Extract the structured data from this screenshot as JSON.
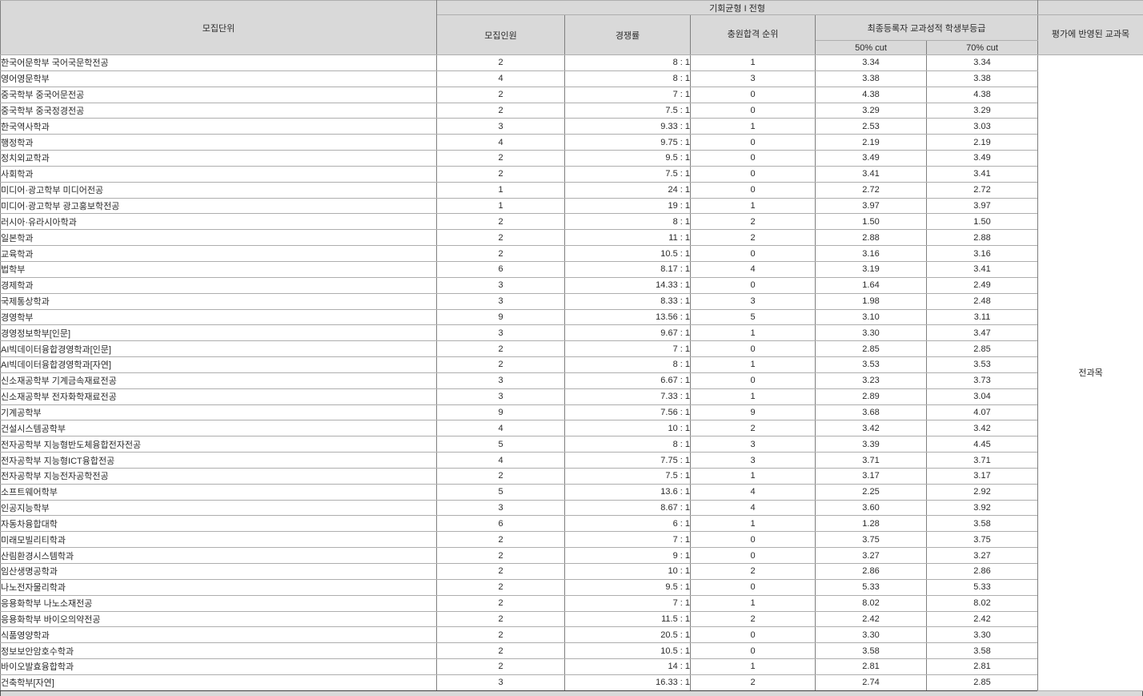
{
  "header": {
    "unit": "모집단위",
    "group_title": "기회균형 I 전형",
    "quota": "모집인원",
    "ratio": "경쟁률",
    "waitlist": "충원합격\n순위",
    "grade_group": "최종등록자 교과성적 학생부등급",
    "cut50": "50% cut",
    "cut70": "70% cut",
    "subjects": "평가에 반영된\n교과목"
  },
  "subjects_value": "전과목",
  "rows": [
    {
      "unit": "한국어문학부 국어국문학전공",
      "quota": "2",
      "ratio": "8 : 1",
      "waitlist": "1",
      "cut50": "3.34",
      "cut70": "3.34"
    },
    {
      "unit": "영어영문학부",
      "quota": "4",
      "ratio": "8 : 1",
      "waitlist": "3",
      "cut50": "3.38",
      "cut70": "3.38"
    },
    {
      "unit": "중국학부 중국어문전공",
      "quota": "2",
      "ratio": "7 : 1",
      "waitlist": "0",
      "cut50": "4.38",
      "cut70": "4.38"
    },
    {
      "unit": "중국학부 중국정경전공",
      "quota": "2",
      "ratio": "7.5 : 1",
      "waitlist": "0",
      "cut50": "3.29",
      "cut70": "3.29"
    },
    {
      "unit": "한국역사학과",
      "quota": "3",
      "ratio": "9.33 : 1",
      "waitlist": "1",
      "cut50": "2.53",
      "cut70": "3.03"
    },
    {
      "unit": "행정학과",
      "quota": "4",
      "ratio": "9.75 : 1",
      "waitlist": "0",
      "cut50": "2.19",
      "cut70": "2.19"
    },
    {
      "unit": "정치외교학과",
      "quota": "2",
      "ratio": "9.5 : 1",
      "waitlist": "0",
      "cut50": "3.49",
      "cut70": "3.49"
    },
    {
      "unit": "사회학과",
      "quota": "2",
      "ratio": "7.5 : 1",
      "waitlist": "0",
      "cut50": "3.41",
      "cut70": "3.41"
    },
    {
      "unit": "미디어·광고학부 미디어전공",
      "quota": "1",
      "ratio": "24 : 1",
      "waitlist": "0",
      "cut50": "2.72",
      "cut70": "2.72"
    },
    {
      "unit": "미디어·광고학부 광고홍보학전공",
      "quota": "1",
      "ratio": "19 : 1",
      "waitlist": "1",
      "cut50": "3.97",
      "cut70": "3.97"
    },
    {
      "unit": "러시아·유라시아학과",
      "quota": "2",
      "ratio": "8 : 1",
      "waitlist": "2",
      "cut50": "1.50",
      "cut70": "1.50"
    },
    {
      "unit": "일본학과",
      "quota": "2",
      "ratio": "11 : 1",
      "waitlist": "2",
      "cut50": "2.88",
      "cut70": "2.88"
    },
    {
      "unit": "교육학과",
      "quota": "2",
      "ratio": "10.5 : 1",
      "waitlist": "0",
      "cut50": "3.16",
      "cut70": "3.16"
    },
    {
      "unit": "법학부",
      "quota": "6",
      "ratio": "8.17 : 1",
      "waitlist": "4",
      "cut50": "3.19",
      "cut70": "3.41"
    },
    {
      "unit": "경제학과",
      "quota": "3",
      "ratio": "14.33 : 1",
      "waitlist": "0",
      "cut50": "1.64",
      "cut70": "2.49"
    },
    {
      "unit": "국제통상학과",
      "quota": "3",
      "ratio": "8.33 : 1",
      "waitlist": "3",
      "cut50": "1.98",
      "cut70": "2.48"
    },
    {
      "unit": "경영학부",
      "quota": "9",
      "ratio": "13.56 : 1",
      "waitlist": "5",
      "cut50": "3.10",
      "cut70": "3.11"
    },
    {
      "unit": "경영정보학부[인문]",
      "quota": "3",
      "ratio": "9.67 : 1",
      "waitlist": "1",
      "cut50": "3.30",
      "cut70": "3.47"
    },
    {
      "unit": "AI빅데이터융합경영학과[인문]",
      "quota": "2",
      "ratio": "7 : 1",
      "waitlist": "0",
      "cut50": "2.85",
      "cut70": "2.85"
    },
    {
      "unit": "AI빅데이터융합경영학과[자연]",
      "quota": "2",
      "ratio": "8 : 1",
      "waitlist": "1",
      "cut50": "3.53",
      "cut70": "3.53"
    },
    {
      "unit": "신소재공학부 기계금속재료전공",
      "quota": "3",
      "ratio": "6.67 : 1",
      "waitlist": "0",
      "cut50": "3.23",
      "cut70": "3.73"
    },
    {
      "unit": "신소재공학부 전자화학재료전공",
      "quota": "3",
      "ratio": "7.33 : 1",
      "waitlist": "1",
      "cut50": "2.89",
      "cut70": "3.04"
    },
    {
      "unit": "기계공학부",
      "quota": "9",
      "ratio": "7.56 : 1",
      "waitlist": "9",
      "cut50": "3.68",
      "cut70": "4.07"
    },
    {
      "unit": "건설시스템공학부",
      "quota": "4",
      "ratio": "10 : 1",
      "waitlist": "2",
      "cut50": "3.42",
      "cut70": "3.42"
    },
    {
      "unit": "전자공학부 지능형반도체융합전자전공",
      "quota": "5",
      "ratio": "8 : 1",
      "waitlist": "3",
      "cut50": "3.39",
      "cut70": "4.45"
    },
    {
      "unit": "전자공학부 지능형ICT융합전공",
      "quota": "4",
      "ratio": "7.75 : 1",
      "waitlist": "3",
      "cut50": "3.71",
      "cut70": "3.71"
    },
    {
      "unit": "전자공학부 지능전자공학전공",
      "quota": "2",
      "ratio": "7.5 : 1",
      "waitlist": "1",
      "cut50": "3.17",
      "cut70": "3.17"
    },
    {
      "unit": "소프트웨어학부",
      "quota": "5",
      "ratio": "13.6 : 1",
      "waitlist": "4",
      "cut50": "2.25",
      "cut70": "2.92"
    },
    {
      "unit": "인공지능학부",
      "quota": "3",
      "ratio": "8.67 : 1",
      "waitlist": "4",
      "cut50": "3.60",
      "cut70": "3.92"
    },
    {
      "unit": "자동차융합대학",
      "quota": "6",
      "ratio": "6 : 1",
      "waitlist": "1",
      "cut50": "1.28",
      "cut70": "3.58"
    },
    {
      "unit": "미래모빌리티학과",
      "quota": "2",
      "ratio": "7 : 1",
      "waitlist": "0",
      "cut50": "3.75",
      "cut70": "3.75"
    },
    {
      "unit": "산림환경시스템학과",
      "quota": "2",
      "ratio": "9 : 1",
      "waitlist": "0",
      "cut50": "3.27",
      "cut70": "3.27"
    },
    {
      "unit": "임산생명공학과",
      "quota": "2",
      "ratio": "10 : 1",
      "waitlist": "2",
      "cut50": "2.86",
      "cut70": "2.86"
    },
    {
      "unit": "나노전자물리학과",
      "quota": "2",
      "ratio": "9.5 : 1",
      "waitlist": "0",
      "cut50": "5.33",
      "cut70": "5.33"
    },
    {
      "unit": "응용화학부 나노소재전공",
      "quota": "2",
      "ratio": "7 : 1",
      "waitlist": "1",
      "cut50": "8.02",
      "cut70": "8.02"
    },
    {
      "unit": "응용화학부 바이오의약전공",
      "quota": "2",
      "ratio": "11.5 : 1",
      "waitlist": "2",
      "cut50": "2.42",
      "cut70": "2.42"
    },
    {
      "unit": "식품영양학과",
      "quota": "2",
      "ratio": "20.5 : 1",
      "waitlist": "0",
      "cut50": "3.30",
      "cut70": "3.30"
    },
    {
      "unit": "정보보안암호수학과",
      "quota": "2",
      "ratio": "10.5 : 1",
      "waitlist": "0",
      "cut50": "3.58",
      "cut70": "3.58"
    },
    {
      "unit": "바이오발효융합학과",
      "quota": "2",
      "ratio": "14 : 1",
      "waitlist": "1",
      "cut50": "2.81",
      "cut70": "2.81"
    },
    {
      "unit": "건축학부[자연]",
      "quota": "3",
      "ratio": "16.33 : 1",
      "waitlist": "2",
      "cut50": "2.74",
      "cut70": "2.85"
    }
  ],
  "colors": {
    "header_bg": "#d9d9d9",
    "border_horizontal": "#aeaeae",
    "border_vertical": "#7f7f7f",
    "border_outer": "#4f4f4f",
    "text": "#2b2b2b",
    "row_bg": "#ffffff"
  }
}
